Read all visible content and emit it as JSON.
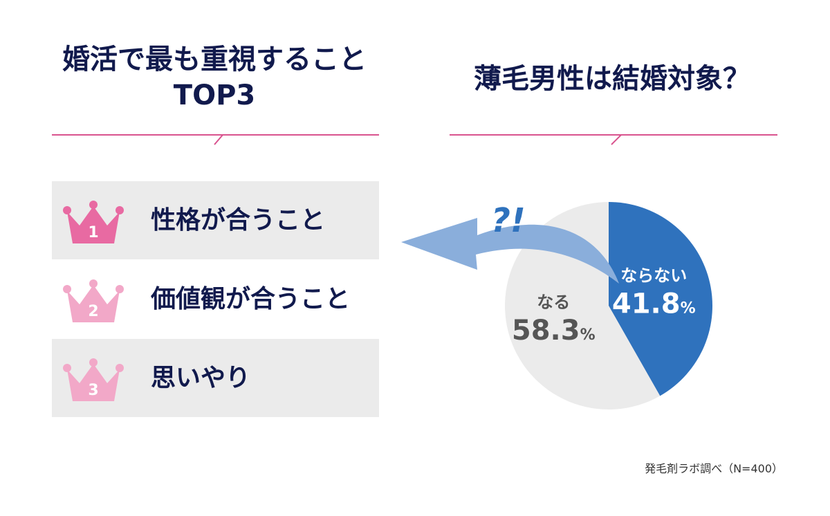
{
  "left_panel": {
    "title_line1": "婚活で最も重視すること",
    "title_line2": "TOP3",
    "ranks": [
      {
        "number": "1",
        "label": "性格が合うこと",
        "color": "#e86aa2"
      },
      {
        "number": "2",
        "label": "価値観が合うこと",
        "color": "#f2a8c8"
      },
      {
        "number": "3",
        "label": "思いやり",
        "color": "#f2a8c8"
      }
    ]
  },
  "right_panel": {
    "title": "薄毛男性は結婚対象？",
    "question_mark": "?!"
  },
  "chart_data": {
    "type": "pie",
    "slices": [
      {
        "label": "ならない",
        "value": 41.8,
        "display": "41.8",
        "unit": "%",
        "color": "#2f72bd"
      },
      {
        "label": "なる",
        "value": 58.3,
        "display": "58.3",
        "unit": "%",
        "color": "#ebebeb"
      }
    ]
  },
  "source": "発毛剤ラボ調べ（N=400）",
  "colors": {
    "navy": "#111a4d",
    "pink_line": "#d9538e",
    "arrow_blue": "#8aaedb",
    "pie_blue": "#2f72bd",
    "pie_gray": "#ebebeb"
  }
}
